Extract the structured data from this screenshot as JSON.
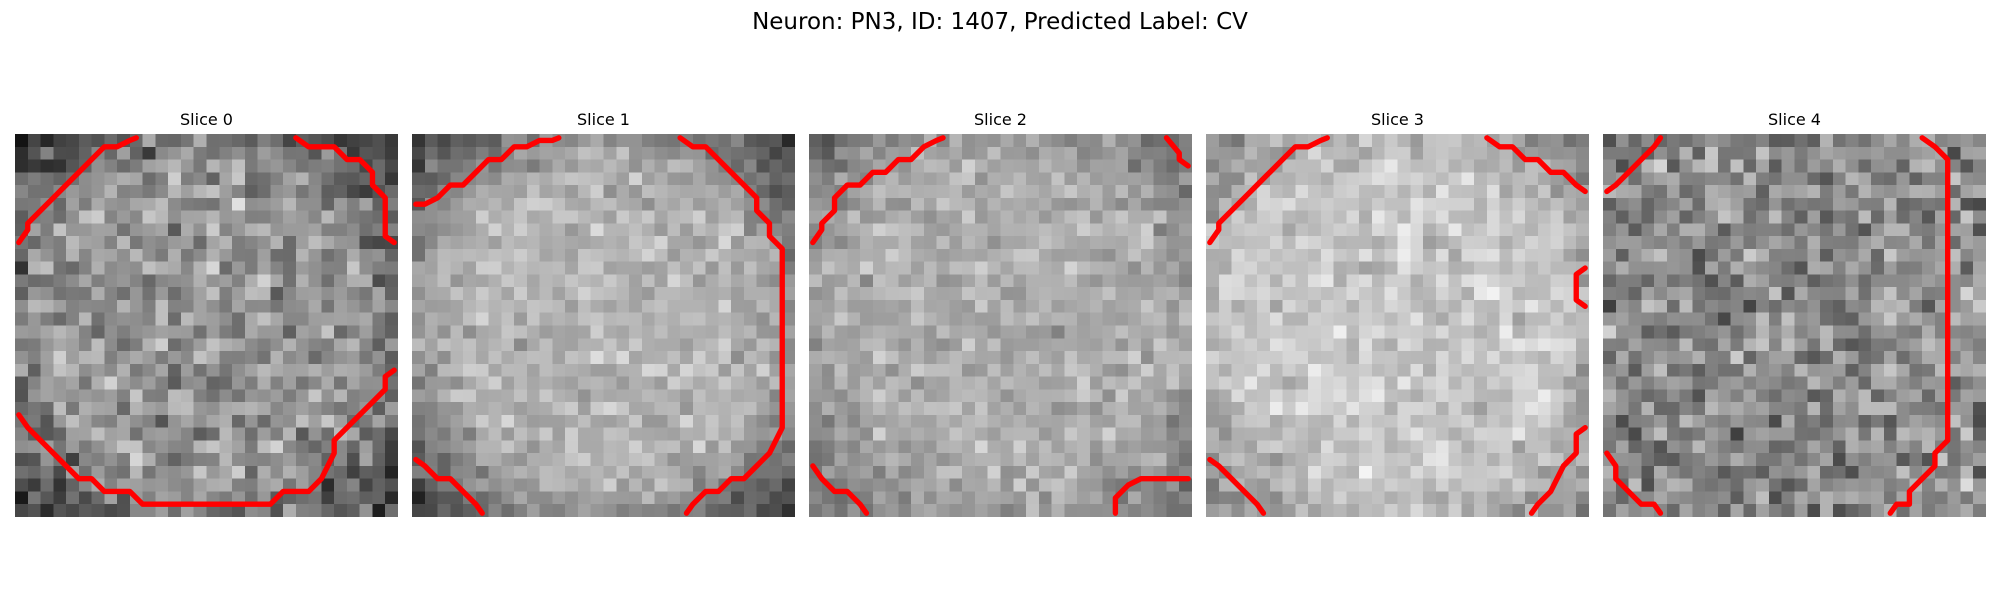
{
  "figure": {
    "title": "Neuron: PN3, ID: 1407, Predicted Label: CV"
  },
  "colors": {
    "contour": "#ff0000",
    "background": "#ffffff"
  },
  "image_grid": 30,
  "panels": [
    {
      "title": "Slice 0",
      "mean": 0.58,
      "sd": 0.13,
      "vignette": 0.45,
      "seed": 11,
      "contours": [
        [
          [
            0.3,
            8.5
          ],
          [
            1,
            7.5
          ],
          [
            1,
            7
          ],
          [
            2,
            6
          ],
          [
            3,
            5
          ],
          [
            4,
            4
          ],
          [
            5,
            3
          ],
          [
            6,
            2
          ],
          [
            7,
            1
          ],
          [
            8,
            1
          ],
          [
            9,
            0.5
          ],
          [
            9.5,
            0.3
          ]
        ],
        [
          [
            22,
            0.3
          ],
          [
            23,
            1
          ],
          [
            25,
            1
          ],
          [
            26,
            2
          ],
          [
            27,
            2
          ],
          [
            28,
            3
          ],
          [
            28,
            4
          ],
          [
            29,
            5
          ],
          [
            29,
            8
          ],
          [
            29.7,
            8.5
          ]
        ],
        [
          [
            0.3,
            22
          ],
          [
            1,
            23
          ],
          [
            2,
            24
          ],
          [
            3,
            25
          ],
          [
            4,
            26
          ],
          [
            5,
            27
          ],
          [
            6,
            27
          ],
          [
            7,
            28
          ],
          [
            9,
            28
          ],
          [
            10,
            29
          ],
          [
            20,
            29
          ],
          [
            21,
            28
          ],
          [
            23,
            28
          ],
          [
            24,
            27
          ],
          [
            25,
            25
          ],
          [
            25,
            24
          ],
          [
            26,
            23
          ],
          [
            27,
            22
          ],
          [
            28,
            21
          ],
          [
            29,
            20
          ],
          [
            29,
            19
          ],
          [
            29.7,
            18.5
          ]
        ]
      ]
    },
    {
      "title": "Slice 1",
      "mean": 0.7,
      "sd": 0.08,
      "vignette": 0.55,
      "seed": 23,
      "contours": [
        [
          [
            0.3,
            5.5
          ],
          [
            1,
            5.5
          ],
          [
            2,
            5
          ],
          [
            3,
            4
          ],
          [
            4,
            4
          ],
          [
            5,
            3
          ],
          [
            6,
            2
          ],
          [
            7,
            2
          ],
          [
            8,
            1
          ],
          [
            9,
            1
          ],
          [
            10,
            0.5
          ],
          [
            11,
            0.5
          ],
          [
            11.5,
            0.3
          ]
        ],
        [
          [
            21,
            0.3
          ],
          [
            22,
            1
          ],
          [
            23,
            1
          ],
          [
            24,
            2
          ],
          [
            25,
            3
          ],
          [
            26,
            4
          ],
          [
            27,
            5
          ],
          [
            27,
            6
          ],
          [
            28,
            7
          ],
          [
            28,
            8
          ],
          [
            29,
            9
          ],
          [
            29,
            23
          ],
          [
            28,
            25
          ],
          [
            27,
            26
          ],
          [
            26,
            27
          ],
          [
            25,
            27
          ],
          [
            24,
            28
          ],
          [
            23,
            28
          ],
          [
            22,
            29
          ],
          [
            21.5,
            29.7
          ]
        ],
        [
          [
            0.3,
            25.5
          ],
          [
            1,
            26
          ],
          [
            2,
            27
          ],
          [
            3,
            27
          ],
          [
            4,
            28
          ],
          [
            5,
            29
          ],
          [
            5.5,
            29.7
          ]
        ]
      ]
    },
    {
      "title": "Slice 2",
      "mean": 0.68,
      "sd": 0.08,
      "vignette": 0.3,
      "seed": 37,
      "contours": [
        [
          [
            0.3,
            8.5
          ],
          [
            1,
            7.5
          ],
          [
            1,
            7
          ],
          [
            2,
            6
          ],
          [
            2,
            5
          ],
          [
            3,
            4
          ],
          [
            4,
            4
          ],
          [
            5,
            3
          ],
          [
            6,
            3
          ],
          [
            7,
            2
          ],
          [
            8,
            2
          ],
          [
            9,
            1
          ],
          [
            10,
            0.5
          ],
          [
            10.5,
            0.3
          ]
        ],
        [
          [
            28,
            0.3
          ],
          [
            29,
            1.5
          ],
          [
            29,
            2
          ],
          [
            29.7,
            2.5
          ]
        ],
        [
          [
            0.3,
            26
          ],
          [
            1,
            27
          ],
          [
            2,
            28
          ],
          [
            3,
            28
          ],
          [
            4,
            29
          ],
          [
            4.5,
            29.7
          ]
        ],
        [
          [
            24,
            29.7
          ],
          [
            24,
            28.5
          ],
          [
            25,
            27.5
          ],
          [
            26,
            27
          ],
          [
            29.7,
            27
          ]
        ]
      ]
    },
    {
      "title": "Slice 3",
      "mean": 0.78,
      "sd": 0.08,
      "vignette": 0.3,
      "seed": 41,
      "contours": [
        [
          [
            0.3,
            8.5
          ],
          [
            1,
            7.5
          ],
          [
            1,
            7
          ],
          [
            2,
            6
          ],
          [
            3,
            5
          ],
          [
            4,
            4
          ],
          [
            5,
            3
          ],
          [
            6,
            2
          ],
          [
            7,
            1
          ],
          [
            8,
            1
          ],
          [
            9,
            0.5
          ],
          [
            9.5,
            0.3
          ]
        ],
        [
          [
            22,
            0.3
          ],
          [
            23,
            1
          ],
          [
            24,
            1
          ],
          [
            25,
            2
          ],
          [
            26,
            2
          ],
          [
            27,
            3
          ],
          [
            28,
            3
          ],
          [
            29,
            4
          ],
          [
            29.7,
            4.5
          ]
        ],
        [
          [
            29.7,
            10.5
          ],
          [
            29,
            11
          ],
          [
            29,
            13
          ],
          [
            29.7,
            13.5
          ]
        ],
        [
          [
            29.7,
            23
          ],
          [
            29,
            23.5
          ],
          [
            29,
            25
          ],
          [
            28,
            26
          ],
          [
            27,
            28
          ],
          [
            26,
            29
          ],
          [
            25.5,
            29.7
          ]
        ],
        [
          [
            0.3,
            25.5
          ],
          [
            1,
            26
          ],
          [
            2,
            27
          ],
          [
            3,
            28
          ],
          [
            4,
            29
          ],
          [
            4.5,
            29.7
          ]
        ]
      ]
    },
    {
      "title": "Slice 4",
      "mean": 0.55,
      "sd": 0.14,
      "vignette": 0.0,
      "seed": 53,
      "contours": [
        [
          [
            0.3,
            4.5
          ],
          [
            1,
            4
          ],
          [
            2,
            3
          ],
          [
            3,
            2
          ],
          [
            4,
            1
          ],
          [
            4.5,
            0.3
          ]
        ],
        [
          [
            25,
            0.3
          ],
          [
            26,
            1
          ],
          [
            27,
            2
          ],
          [
            27,
            24
          ],
          [
            26,
            25
          ],
          [
            26,
            26
          ],
          [
            25,
            27
          ],
          [
            24,
            28
          ],
          [
            24,
            29
          ],
          [
            23,
            29
          ],
          [
            22.5,
            29.7
          ]
        ],
        [
          [
            0.3,
            25
          ],
          [
            1,
            26
          ],
          [
            1,
            27
          ],
          [
            2,
            28
          ],
          [
            3,
            29
          ],
          [
            4,
            29
          ],
          [
            4.5,
            29.7
          ]
        ]
      ]
    }
  ]
}
